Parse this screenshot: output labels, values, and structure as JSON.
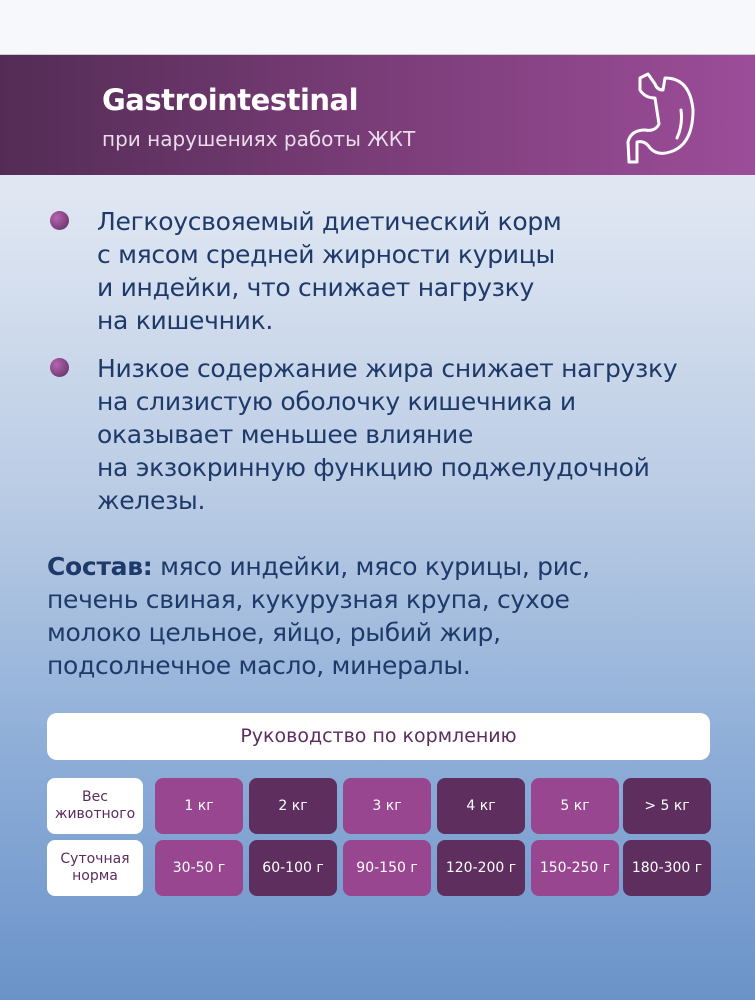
{
  "header": {
    "title": "Gastrointestinal",
    "subtitle": "при нарушениях работы ЖКТ",
    "icon": "stomach-icon"
  },
  "bullets": [
    "Легкоусвояемый диетический корм\nс мясом средней жирности курицы\nи индейки, что снижает нагрузку\nна кишечник.",
    "Низкое содержание жира снижает нагрузку\nна слизистую оболочку кишечника и\nоказывает меньшее влияние\nна экзокринную функцию поджелудочной\nжелезы."
  ],
  "composition": {
    "label": "Состав:",
    "text": " мясо индейки, мясо курицы, рис,\nпечень свиная, кукурузная крупа, сухое\nмолоко цельное, яйцо, рыбий жир,\nподсолнечное масло, минералы."
  },
  "feeding": {
    "title": "Руководство по кормлению",
    "row_labels": [
      "Вес\nживотного",
      "Суточная\nнорма"
    ],
    "weights": [
      "1 кг",
      "2 кг",
      "3 кг",
      "4 кг",
      "5 кг",
      "> 5 кг"
    ],
    "norms": [
      "30-50 г",
      "60-100 г",
      "90-150 г",
      "120-200 г",
      "150-250 г",
      "180-300 г"
    ]
  },
  "colors": {
    "banner_dark": "#532c55",
    "banner_light": "#9c4d99",
    "text": "#1e3a6a",
    "cell_light": "#97468f",
    "cell_dark": "#5e2f5e"
  }
}
